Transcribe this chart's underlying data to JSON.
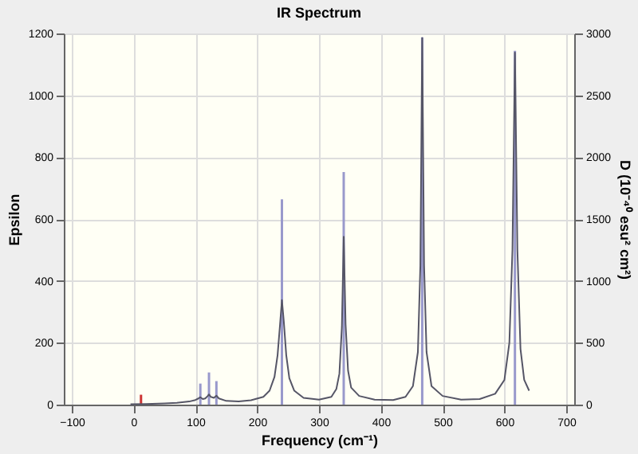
{
  "chart_data": {
    "type": "line",
    "title": "IR Spectrum",
    "xlabel": "Frequency (cm⁻¹)",
    "ylabel": "Epsilon",
    "y2label": "D (10⁻⁴⁰ esu² cm²)",
    "xlim": [
      -100,
      700
    ],
    "xticks": [
      -100,
      0,
      100,
      200,
      300,
      400,
      500,
      600,
      700
    ],
    "ylim": [
      0,
      1200
    ],
    "yticks": [
      0,
      200,
      400,
      600,
      800,
      1000,
      1200
    ],
    "y2lim": [
      0,
      3000
    ],
    "y2ticks": [
      0,
      500,
      1000,
      1500,
      2000,
      2500,
      3000
    ],
    "grid": true,
    "marker": "none",
    "line_style": "solid",
    "series": [
      {
        "color": "#555566",
        "x": [
          -5,
          20,
          50,
          70,
          90,
          100,
          105,
          108,
          112,
          116,
          120,
          122,
          125,
          130,
          134,
          138,
          150,
          170,
          190,
          210,
          220,
          228,
          233,
          237,
          240,
          243,
          247,
          252,
          260,
          275,
          300,
          320,
          328,
          333,
          337,
          340,
          343,
          347,
          352,
          365,
          390,
          420,
          440,
          452,
          460,
          464,
          467,
          470,
          474,
          482,
          500,
          530,
          560,
          585,
          600,
          608,
          613,
          617,
          621,
          626,
          632,
          640
        ],
        "values": [
          1,
          2,
          4,
          6,
          10,
          15,
          20,
          24,
          18,
          20,
          28,
          33,
          25,
          22,
          29,
          20,
          12,
          10,
          14,
          25,
          45,
          90,
          160,
          260,
          338,
          270,
          160,
          85,
          45,
          22,
          16,
          25,
          50,
          100,
          250,
          543,
          260,
          110,
          55,
          28,
          16,
          15,
          25,
          60,
          170,
          450,
          1185,
          450,
          170,
          60,
          28,
          16,
          18,
          35,
          80,
          200,
          500,
          1138,
          500,
          180,
          80,
          45
        ]
      },
      {
        "type": "bar",
        "axis": "y2",
        "colors": [
          "#cc3333",
          "#9999cc",
          "#9999cc",
          "#9999cc",
          "#9999cc",
          "#9999cc",
          "#9999cc",
          "#9999cc"
        ],
        "x": [
          12,
          108,
          122,
          134,
          240,
          340,
          467,
          617
        ],
        "values": [
          80,
          170,
          260,
          190,
          1660,
          1880,
          2970,
          2860
        ]
      }
    ]
  }
}
